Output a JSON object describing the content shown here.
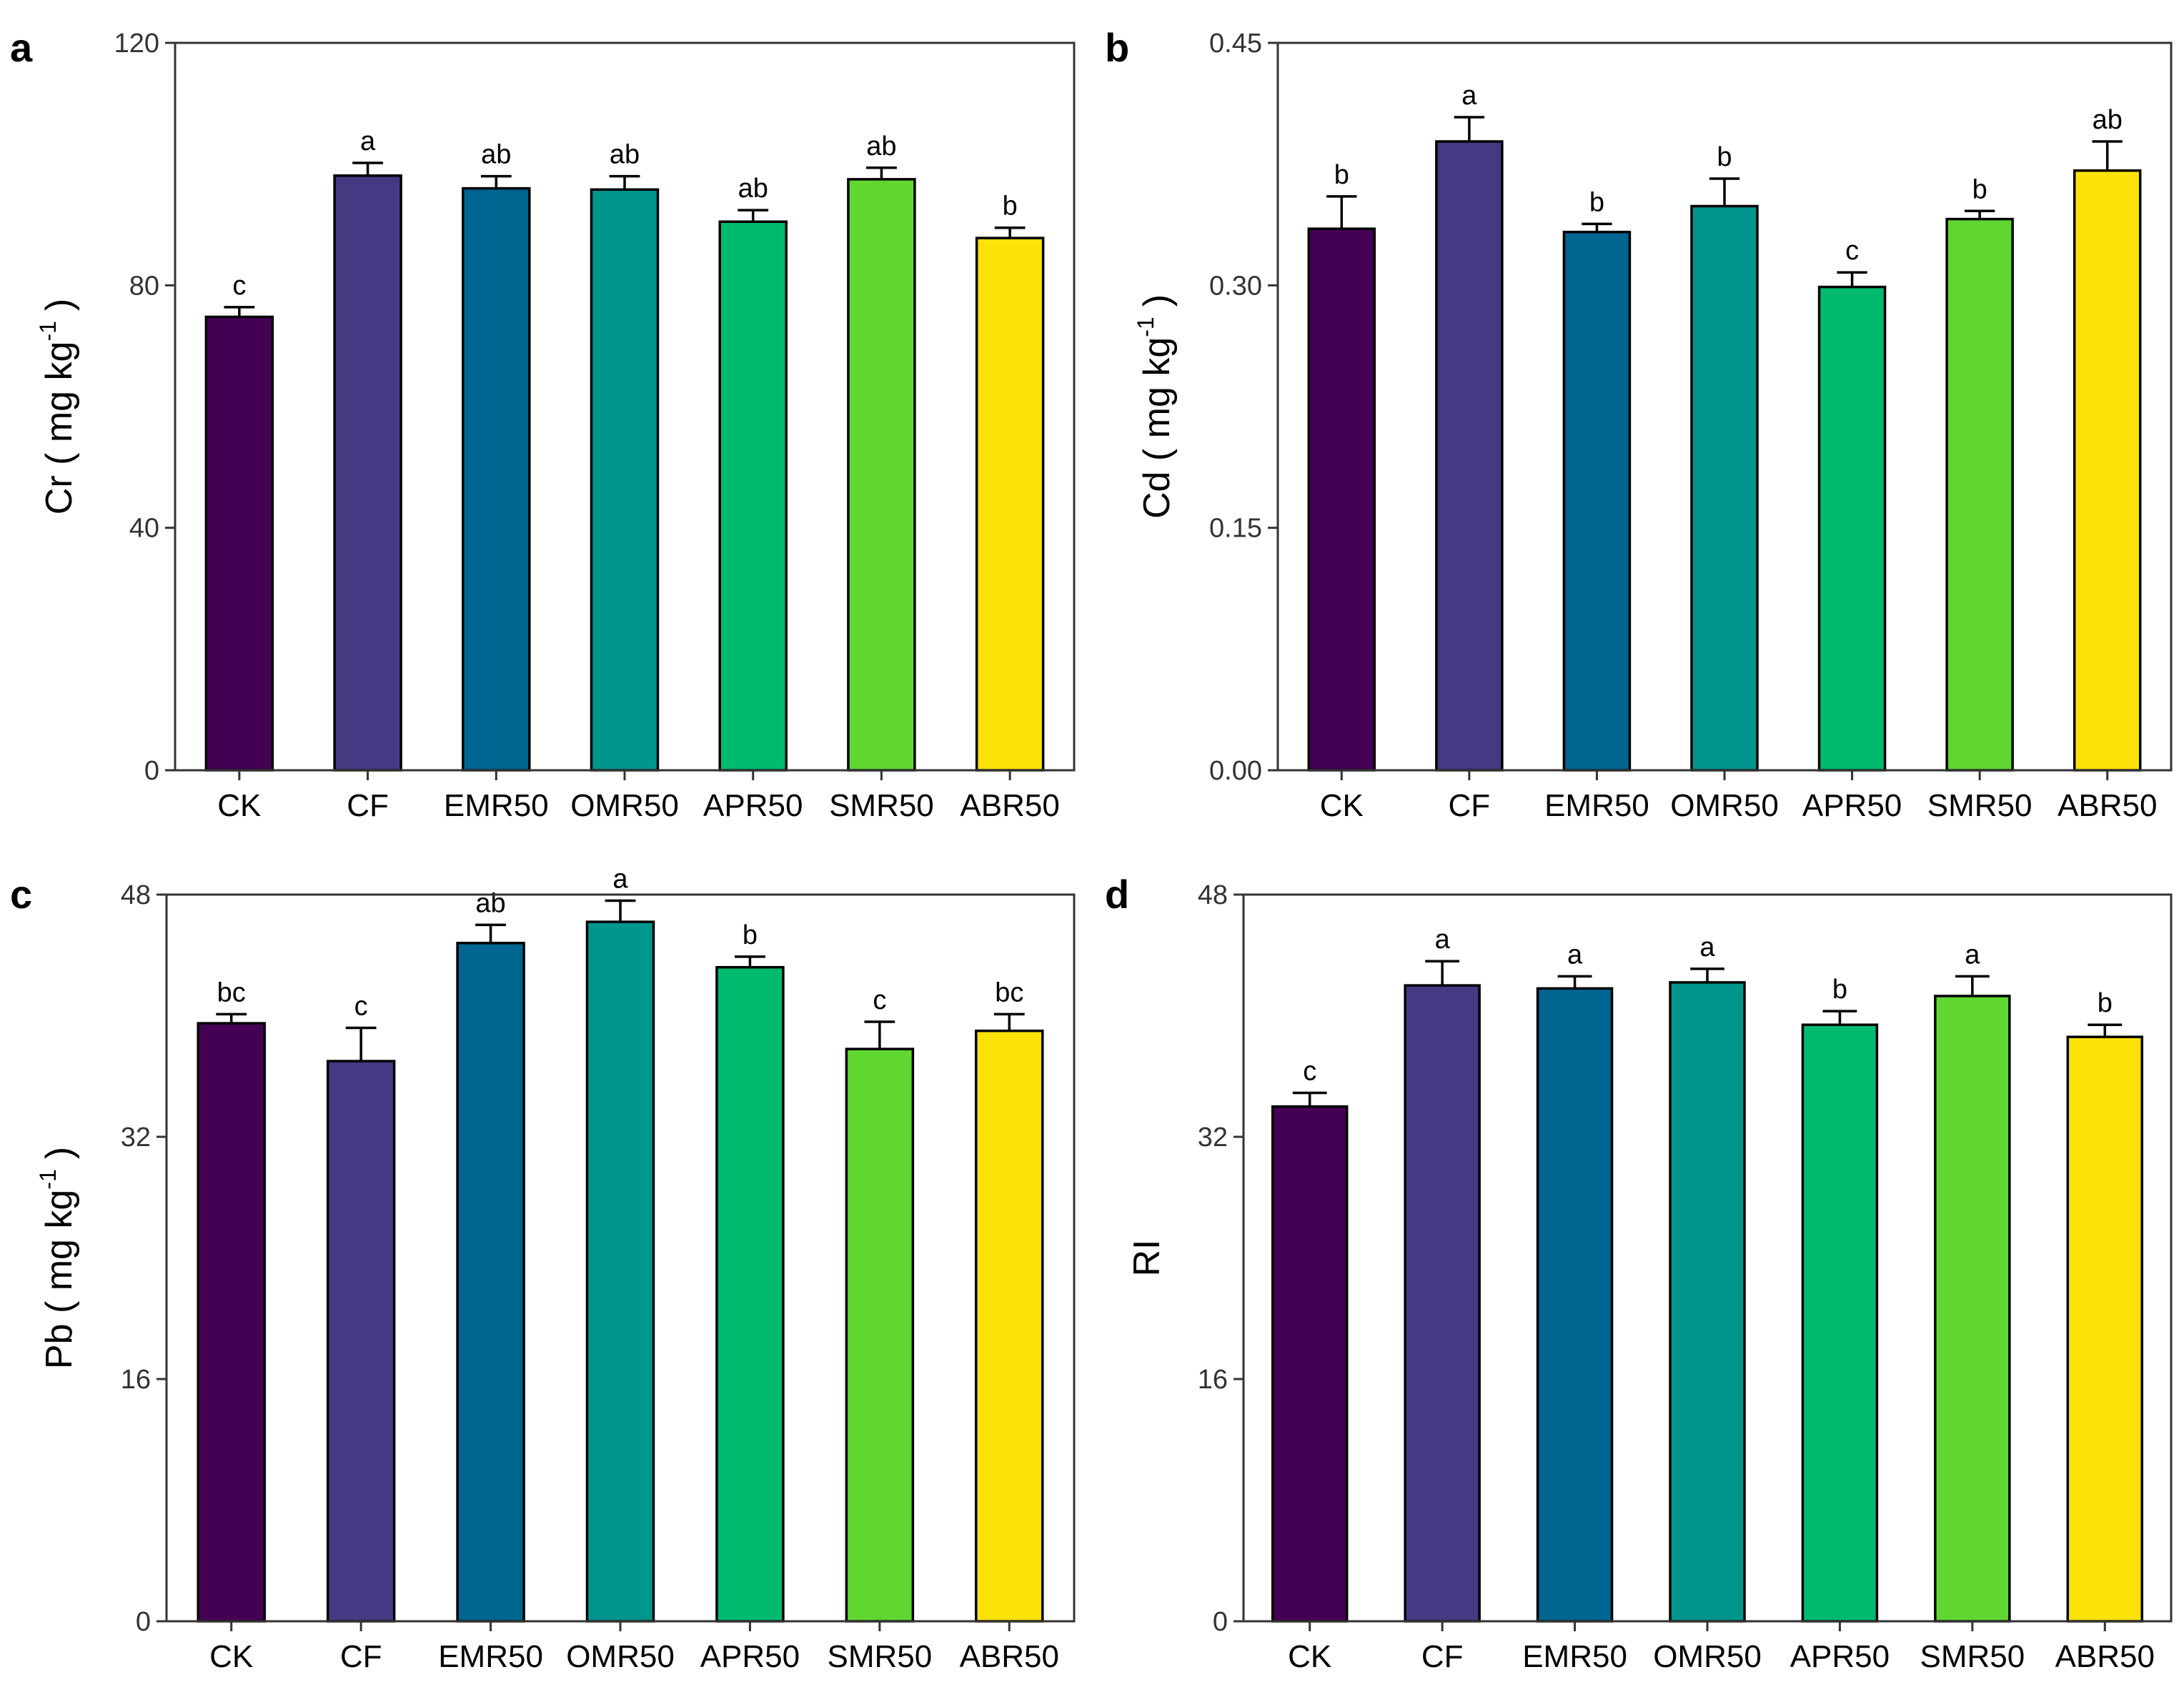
{
  "categories": [
    "CK",
    "CF",
    "EMR50",
    "OMR50",
    "APR50",
    "SMR50",
    "ABR50"
  ],
  "colors": [
    "#440154",
    "#443983",
    "#006590",
    "#00958D",
    "#00BA6F",
    "#5FD730",
    "#FDE20A"
  ],
  "chart_data": [
    {
      "type": "bar",
      "panel_label": "a",
      "ylabel_main": "Cr ( mg kg",
      "ylabel_sup": "-1",
      "ylabel_end": ")",
      "categories": [
        "CK",
        "CF",
        "EMR50",
        "OMR50",
        "APR50",
        "SMR50",
        "ABR50"
      ],
      "values": [
        74.8,
        98.1,
        96.0,
        95.8,
        90.5,
        97.5,
        87.8
      ],
      "errors": [
        1.6,
        2.1,
        2.0,
        2.2,
        1.9,
        1.9,
        1.7
      ],
      "letters": [
        "c",
        "a",
        "ab",
        "ab",
        "ab",
        "ab",
        "b"
      ],
      "ylim": [
        0,
        120
      ],
      "yticks": [
        0,
        40,
        80,
        120
      ],
      "ytick_labels": [
        "0",
        "40",
        "80",
        "120"
      ]
    },
    {
      "type": "bar",
      "panel_label": "b",
      "ylabel_main": "Cd ( mg kg",
      "ylabel_sup": "-1",
      "ylabel_end": ")",
      "categories": [
        "CK",
        "CF",
        "EMR50",
        "OMR50",
        "APR50",
        "SMR50",
        "ABR50"
      ],
      "values": [
        0.335,
        0.389,
        0.333,
        0.349,
        0.299,
        0.341,
        0.371
      ],
      "errors": [
        0.02,
        0.015,
        0.005,
        0.017,
        0.009,
        0.005,
        0.018
      ],
      "letters": [
        "b",
        "a",
        "b",
        "b",
        "c",
        "b",
        "ab"
      ],
      "ylim": [
        0,
        0.45
      ],
      "yticks": [
        0,
        0.15,
        0.3,
        0.45
      ],
      "ytick_labels": [
        "0.00",
        "0.15",
        "0.30",
        "0.45"
      ]
    },
    {
      "type": "bar",
      "panel_label": "c",
      "ylabel_main": "Pb ( mg kg",
      "ylabel_sup": "-1",
      "ylabel_end": ")",
      "categories": [
        "CK",
        "CF",
        "EMR50",
        "OMR50",
        "APR50",
        "SMR50",
        "ABR50"
      ],
      "values": [
        39.5,
        37.0,
        44.8,
        46.2,
        43.2,
        37.8,
        39.0
      ],
      "errors": [
        0.6,
        2.2,
        1.2,
        1.4,
        0.7,
        1.8,
        1.1
      ],
      "letters": [
        "bc",
        "c",
        "ab",
        "a",
        "b",
        "c",
        "bc"
      ],
      "ylim": [
        0,
        48
      ],
      "yticks": [
        0,
        16,
        32,
        48
      ],
      "ytick_labels": [
        "0",
        "16",
        "32",
        "48"
      ]
    },
    {
      "type": "bar",
      "panel_label": "d",
      "ylabel_main": "RI",
      "ylabel_sup": "",
      "ylabel_end": "",
      "categories": [
        "CK",
        "CF",
        "EMR50",
        "OMR50",
        "APR50",
        "SMR50",
        "ABR50"
      ],
      "values": [
        34.0,
        42.0,
        41.8,
        42.2,
        39.4,
        41.3,
        38.6
      ],
      "errors": [
        0.9,
        1.6,
        0.8,
        0.9,
        0.9,
        1.3,
        0.8
      ],
      "letters": [
        "c",
        "a",
        "a",
        "a",
        "b",
        "a",
        "b"
      ],
      "ylim": [
        0,
        48
      ],
      "yticks": [
        0,
        16,
        32,
        48
      ],
      "ytick_labels": [
        "0",
        "16",
        "32",
        "48"
      ]
    }
  ]
}
